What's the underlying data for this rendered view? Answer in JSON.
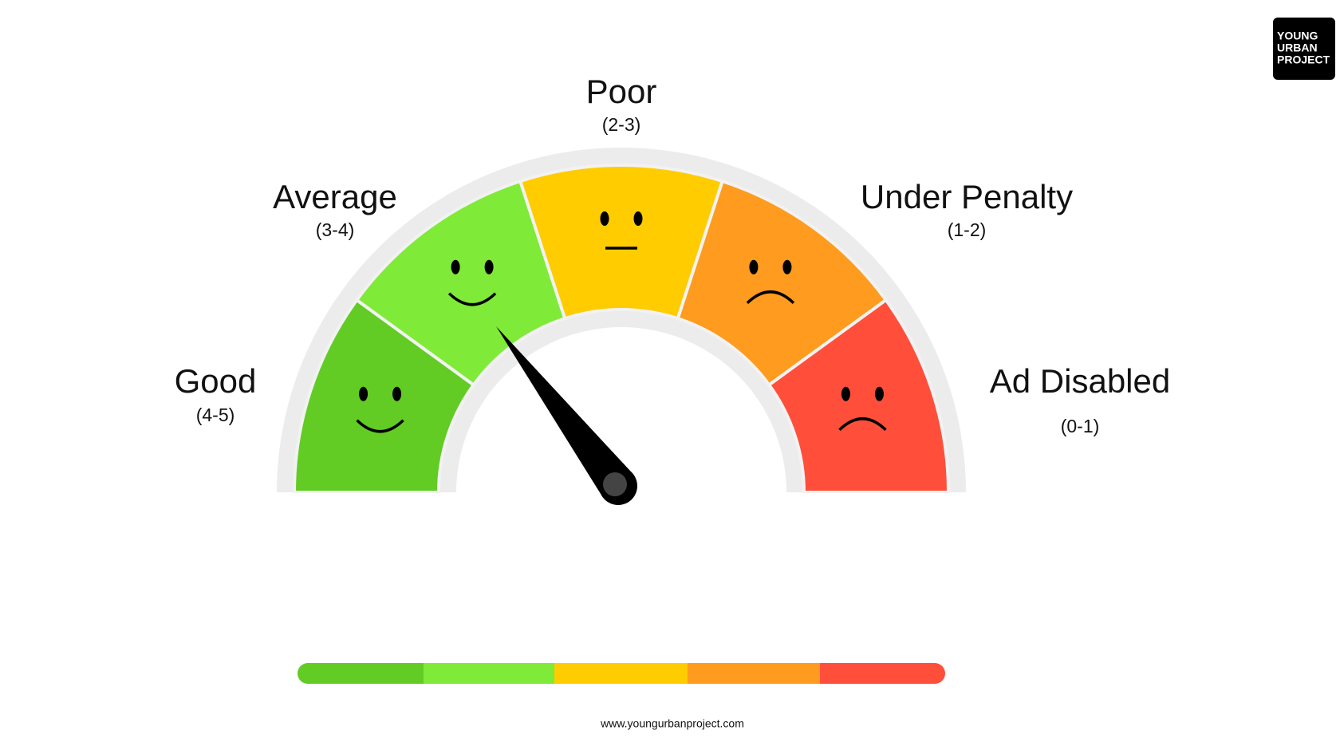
{
  "logo": {
    "lines": [
      "YOUNG",
      "URBAN",
      "PROJECT"
    ]
  },
  "segments": [
    {
      "label": "Good",
      "range": "(4-5)"
    },
    {
      "label": "Average",
      "range": "(3-4)"
    },
    {
      "label": "Poor",
      "range": "(2-3)"
    },
    {
      "label": "Under Penalty",
      "range": "(1-2)"
    },
    {
      "label": "Ad Disabled",
      "range": "(0-1)"
    }
  ],
  "footer": "www.youngurbanproject.com"
}
